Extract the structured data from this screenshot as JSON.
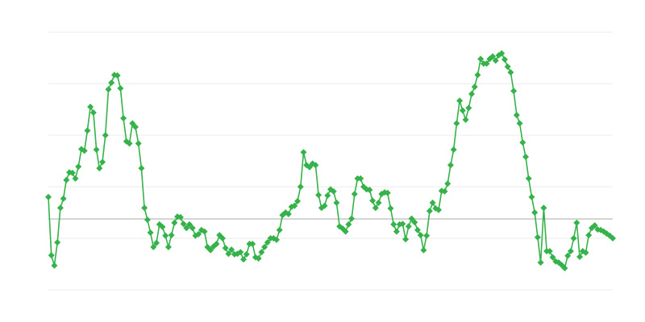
{
  "chart_data": {
    "type": "line",
    "title": "",
    "xlabel": "",
    "ylabel": "",
    "ylim": [
      0,
      5
    ],
    "grid": true,
    "gridlines": [
      0,
      1,
      2,
      3,
      4,
      5
    ],
    "reference_line": 1.375,
    "legend": "none",
    "colors": {
      "series": "#35b24a",
      "grid": "#ebebeb",
      "reference": "#aaaaaa"
    },
    "marker": "diamond",
    "series": [
      {
        "values": [
          1.8,
          0.67,
          0.47,
          0.92,
          1.59,
          1.77,
          2.13,
          2.28,
          2.27,
          2.16,
          2.39,
          2.73,
          2.7,
          3.09,
          3.55,
          3.44,
          2.72,
          2.36,
          2.48,
          3.0,
          3.89,
          4.02,
          4.17,
          4.16,
          3.91,
          3.33,
          2.88,
          2.84,
          3.23,
          3.16,
          2.84,
          2.36,
          1.59,
          1.36,
          1.11,
          0.83,
          0.91,
          1.27,
          1.22,
          1.05,
          0.83,
          1.06,
          1.3,
          1.42,
          1.41,
          1.28,
          1.2,
          1.27,
          1.2,
          1.05,
          1.08,
          1.16,
          1.13,
          0.83,
          0.77,
          0.84,
          0.89,
          1.06,
          1.0,
          0.81,
          0.7,
          0.78,
          0.69,
          0.7,
          0.73,
          0.59,
          0.69,
          0.89,
          0.89,
          0.63,
          0.61,
          0.73,
          0.83,
          0.92,
          1.0,
          1.0,
          0.97,
          1.16,
          1.45,
          1.5,
          1.47,
          1.61,
          1.63,
          1.72,
          2.0,
          2.67,
          2.42,
          2.38,
          2.45,
          2.42,
          1.84,
          1.59,
          1.63,
          1.83,
          1.95,
          1.91,
          1.69,
          1.23,
          1.19,
          1.13,
          1.27,
          1.38,
          1.86,
          2.16,
          2.16,
          2.0,
          1.95,
          1.94,
          1.73,
          1.59,
          1.69,
          1.86,
          1.89,
          1.88,
          1.58,
          1.27,
          1.13,
          1.27,
          1.28,
          0.98,
          1.23,
          1.38,
          1.31,
          1.16,
          1.06,
          0.77,
          1.05,
          1.53,
          1.69,
          1.58,
          1.55,
          1.92,
          1.91,
          2.06,
          2.42,
          2.72,
          3.23,
          3.67,
          3.48,
          3.3,
          3.53,
          3.8,
          3.94,
          4.17,
          4.48,
          4.39,
          4.39,
          4.48,
          4.53,
          4.45,
          4.55,
          4.59,
          4.47,
          4.33,
          4.22,
          3.86,
          3.39,
          3.23,
          2.86,
          2.58,
          2.16,
          1.8,
          1.5,
          1.02,
          0.53,
          1.59,
          0.75,
          0.75,
          0.63,
          0.55,
          0.53,
          0.48,
          0.42,
          0.66,
          0.75,
          1.0,
          1.3,
          0.64,
          0.75,
          0.72,
          1.06,
          1.2,
          1.25,
          1.17,
          1.16,
          1.13,
          1.09,
          1.05,
          1.0
        ]
      }
    ]
  }
}
